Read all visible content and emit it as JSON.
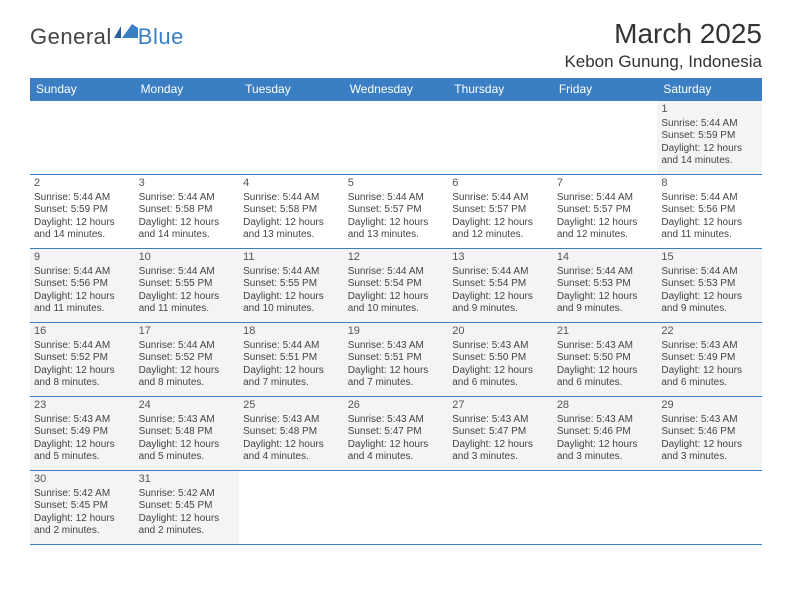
{
  "logo": {
    "general": "General",
    "blue": "Blue"
  },
  "title": "March 2025",
  "location": "Kebon Gunung, Indonesia",
  "colors": {
    "header_bg": "#3a7fc4",
    "header_fg": "#ffffff",
    "cell_bg": "#f4f4f4",
    "border": "#3a7fc4"
  },
  "weekdays": [
    "Sunday",
    "Monday",
    "Tuesday",
    "Wednesday",
    "Thursday",
    "Friday",
    "Saturday"
  ],
  "weeks": [
    [
      {
        "blank": true
      },
      {
        "blank": true
      },
      {
        "blank": true
      },
      {
        "blank": true
      },
      {
        "blank": true
      },
      {
        "blank": true
      },
      {
        "day": "1",
        "sunrise": "Sunrise: 5:44 AM",
        "sunset": "Sunset: 5:59 PM",
        "daylight1": "Daylight: 12 hours",
        "daylight2": "and 14 minutes."
      }
    ],
    [
      {
        "day": "2",
        "sunrise": "Sunrise: 5:44 AM",
        "sunset": "Sunset: 5:59 PM",
        "daylight1": "Daylight: 12 hours",
        "daylight2": "and 14 minutes."
      },
      {
        "day": "3",
        "sunrise": "Sunrise: 5:44 AM",
        "sunset": "Sunset: 5:58 PM",
        "daylight1": "Daylight: 12 hours",
        "daylight2": "and 14 minutes."
      },
      {
        "day": "4",
        "sunrise": "Sunrise: 5:44 AM",
        "sunset": "Sunset: 5:58 PM",
        "daylight1": "Daylight: 12 hours",
        "daylight2": "and 13 minutes."
      },
      {
        "day": "5",
        "sunrise": "Sunrise: 5:44 AM",
        "sunset": "Sunset: 5:57 PM",
        "daylight1": "Daylight: 12 hours",
        "daylight2": "and 13 minutes."
      },
      {
        "day": "6",
        "sunrise": "Sunrise: 5:44 AM",
        "sunset": "Sunset: 5:57 PM",
        "daylight1": "Daylight: 12 hours",
        "daylight2": "and 12 minutes."
      },
      {
        "day": "7",
        "sunrise": "Sunrise: 5:44 AM",
        "sunset": "Sunset: 5:57 PM",
        "daylight1": "Daylight: 12 hours",
        "daylight2": "and 12 minutes."
      },
      {
        "day": "8",
        "sunrise": "Sunrise: 5:44 AM",
        "sunset": "Sunset: 5:56 PM",
        "daylight1": "Daylight: 12 hours",
        "daylight2": "and 11 minutes."
      }
    ],
    [
      {
        "day": "9",
        "sunrise": "Sunrise: 5:44 AM",
        "sunset": "Sunset: 5:56 PM",
        "daylight1": "Daylight: 12 hours",
        "daylight2": "and 11 minutes."
      },
      {
        "day": "10",
        "sunrise": "Sunrise: 5:44 AM",
        "sunset": "Sunset: 5:55 PM",
        "daylight1": "Daylight: 12 hours",
        "daylight2": "and 11 minutes."
      },
      {
        "day": "11",
        "sunrise": "Sunrise: 5:44 AM",
        "sunset": "Sunset: 5:55 PM",
        "daylight1": "Daylight: 12 hours",
        "daylight2": "and 10 minutes."
      },
      {
        "day": "12",
        "sunrise": "Sunrise: 5:44 AM",
        "sunset": "Sunset: 5:54 PM",
        "daylight1": "Daylight: 12 hours",
        "daylight2": "and 10 minutes."
      },
      {
        "day": "13",
        "sunrise": "Sunrise: 5:44 AM",
        "sunset": "Sunset: 5:54 PM",
        "daylight1": "Daylight: 12 hours",
        "daylight2": "and 9 minutes."
      },
      {
        "day": "14",
        "sunrise": "Sunrise: 5:44 AM",
        "sunset": "Sunset: 5:53 PM",
        "daylight1": "Daylight: 12 hours",
        "daylight2": "and 9 minutes."
      },
      {
        "day": "15",
        "sunrise": "Sunrise: 5:44 AM",
        "sunset": "Sunset: 5:53 PM",
        "daylight1": "Daylight: 12 hours",
        "daylight2": "and 9 minutes."
      }
    ],
    [
      {
        "day": "16",
        "sunrise": "Sunrise: 5:44 AM",
        "sunset": "Sunset: 5:52 PM",
        "daylight1": "Daylight: 12 hours",
        "daylight2": "and 8 minutes."
      },
      {
        "day": "17",
        "sunrise": "Sunrise: 5:44 AM",
        "sunset": "Sunset: 5:52 PM",
        "daylight1": "Daylight: 12 hours",
        "daylight2": "and 8 minutes."
      },
      {
        "day": "18",
        "sunrise": "Sunrise: 5:44 AM",
        "sunset": "Sunset: 5:51 PM",
        "daylight1": "Daylight: 12 hours",
        "daylight2": "and 7 minutes."
      },
      {
        "day": "19",
        "sunrise": "Sunrise: 5:43 AM",
        "sunset": "Sunset: 5:51 PM",
        "daylight1": "Daylight: 12 hours",
        "daylight2": "and 7 minutes."
      },
      {
        "day": "20",
        "sunrise": "Sunrise: 5:43 AM",
        "sunset": "Sunset: 5:50 PM",
        "daylight1": "Daylight: 12 hours",
        "daylight2": "and 6 minutes."
      },
      {
        "day": "21",
        "sunrise": "Sunrise: 5:43 AM",
        "sunset": "Sunset: 5:50 PM",
        "daylight1": "Daylight: 12 hours",
        "daylight2": "and 6 minutes."
      },
      {
        "day": "22",
        "sunrise": "Sunrise: 5:43 AM",
        "sunset": "Sunset: 5:49 PM",
        "daylight1": "Daylight: 12 hours",
        "daylight2": "and 6 minutes."
      }
    ],
    [
      {
        "day": "23",
        "sunrise": "Sunrise: 5:43 AM",
        "sunset": "Sunset: 5:49 PM",
        "daylight1": "Daylight: 12 hours",
        "daylight2": "and 5 minutes."
      },
      {
        "day": "24",
        "sunrise": "Sunrise: 5:43 AM",
        "sunset": "Sunset: 5:48 PM",
        "daylight1": "Daylight: 12 hours",
        "daylight2": "and 5 minutes."
      },
      {
        "day": "25",
        "sunrise": "Sunrise: 5:43 AM",
        "sunset": "Sunset: 5:48 PM",
        "daylight1": "Daylight: 12 hours",
        "daylight2": "and 4 minutes."
      },
      {
        "day": "26",
        "sunrise": "Sunrise: 5:43 AM",
        "sunset": "Sunset: 5:47 PM",
        "daylight1": "Daylight: 12 hours",
        "daylight2": "and 4 minutes."
      },
      {
        "day": "27",
        "sunrise": "Sunrise: 5:43 AM",
        "sunset": "Sunset: 5:47 PM",
        "daylight1": "Daylight: 12 hours",
        "daylight2": "and 3 minutes."
      },
      {
        "day": "28",
        "sunrise": "Sunrise: 5:43 AM",
        "sunset": "Sunset: 5:46 PM",
        "daylight1": "Daylight: 12 hours",
        "daylight2": "and 3 minutes."
      },
      {
        "day": "29",
        "sunrise": "Sunrise: 5:43 AM",
        "sunset": "Sunset: 5:46 PM",
        "daylight1": "Daylight: 12 hours",
        "daylight2": "and 3 minutes."
      }
    ],
    [
      {
        "day": "30",
        "sunrise": "Sunrise: 5:42 AM",
        "sunset": "Sunset: 5:45 PM",
        "daylight1": "Daylight: 12 hours",
        "daylight2": "and 2 minutes."
      },
      {
        "day": "31",
        "sunrise": "Sunrise: 5:42 AM",
        "sunset": "Sunset: 5:45 PM",
        "daylight1": "Daylight: 12 hours",
        "daylight2": "and 2 minutes."
      },
      {
        "blank": true
      },
      {
        "blank": true
      },
      {
        "blank": true
      },
      {
        "blank": true
      },
      {
        "blank": true
      }
    ]
  ]
}
